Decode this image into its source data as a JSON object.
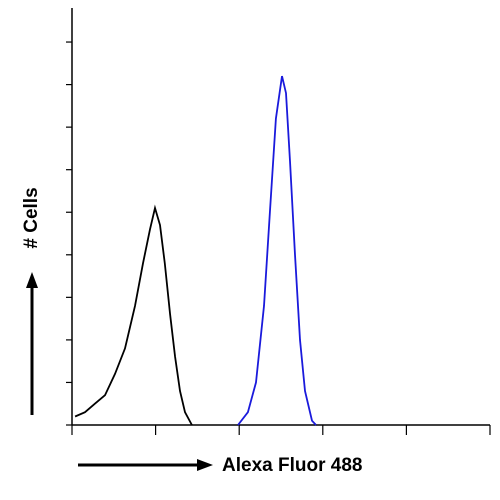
{
  "chart_data": {
    "type": "line",
    "x_label": "Alexa Fluor 488",
    "y_label": "# Cells",
    "xscale": "log",
    "xlim": [
      1,
      100000
    ],
    "xticks": [
      1,
      10,
      100,
      1000,
      10000,
      100000
    ],
    "ylim": [
      0,
      98
    ],
    "yticks": [
      0,
      10,
      20,
      30,
      40,
      50,
      60,
      70,
      80,
      90
    ],
    "series": [
      {
        "color": "#000000",
        "x": [
          1.09,
          1.43,
          1.88,
          2.48,
          3.27,
          4.3,
          5.67,
          7.07,
          8.57,
          9.84,
          11.3,
          12.9,
          14.9,
          17.1,
          19.6,
          22.5,
          27.2
        ],
        "values": [
          2,
          3,
          5,
          7,
          12,
          18,
          28,
          38,
          46,
          51,
          47,
          38,
          26,
          16,
          8,
          3,
          0
        ]
      },
      {
        "color": "#1a1adc",
        "x": [
          96.8,
          127,
          159,
          198,
          233,
          275,
          325,
          363,
          405,
          465,
          534,
          612,
          743,
          830
        ],
        "values": [
          0,
          3,
          10,
          28,
          50,
          72,
          82,
          78,
          62,
          40,
          20,
          8,
          1,
          0
        ]
      }
    ]
  }
}
